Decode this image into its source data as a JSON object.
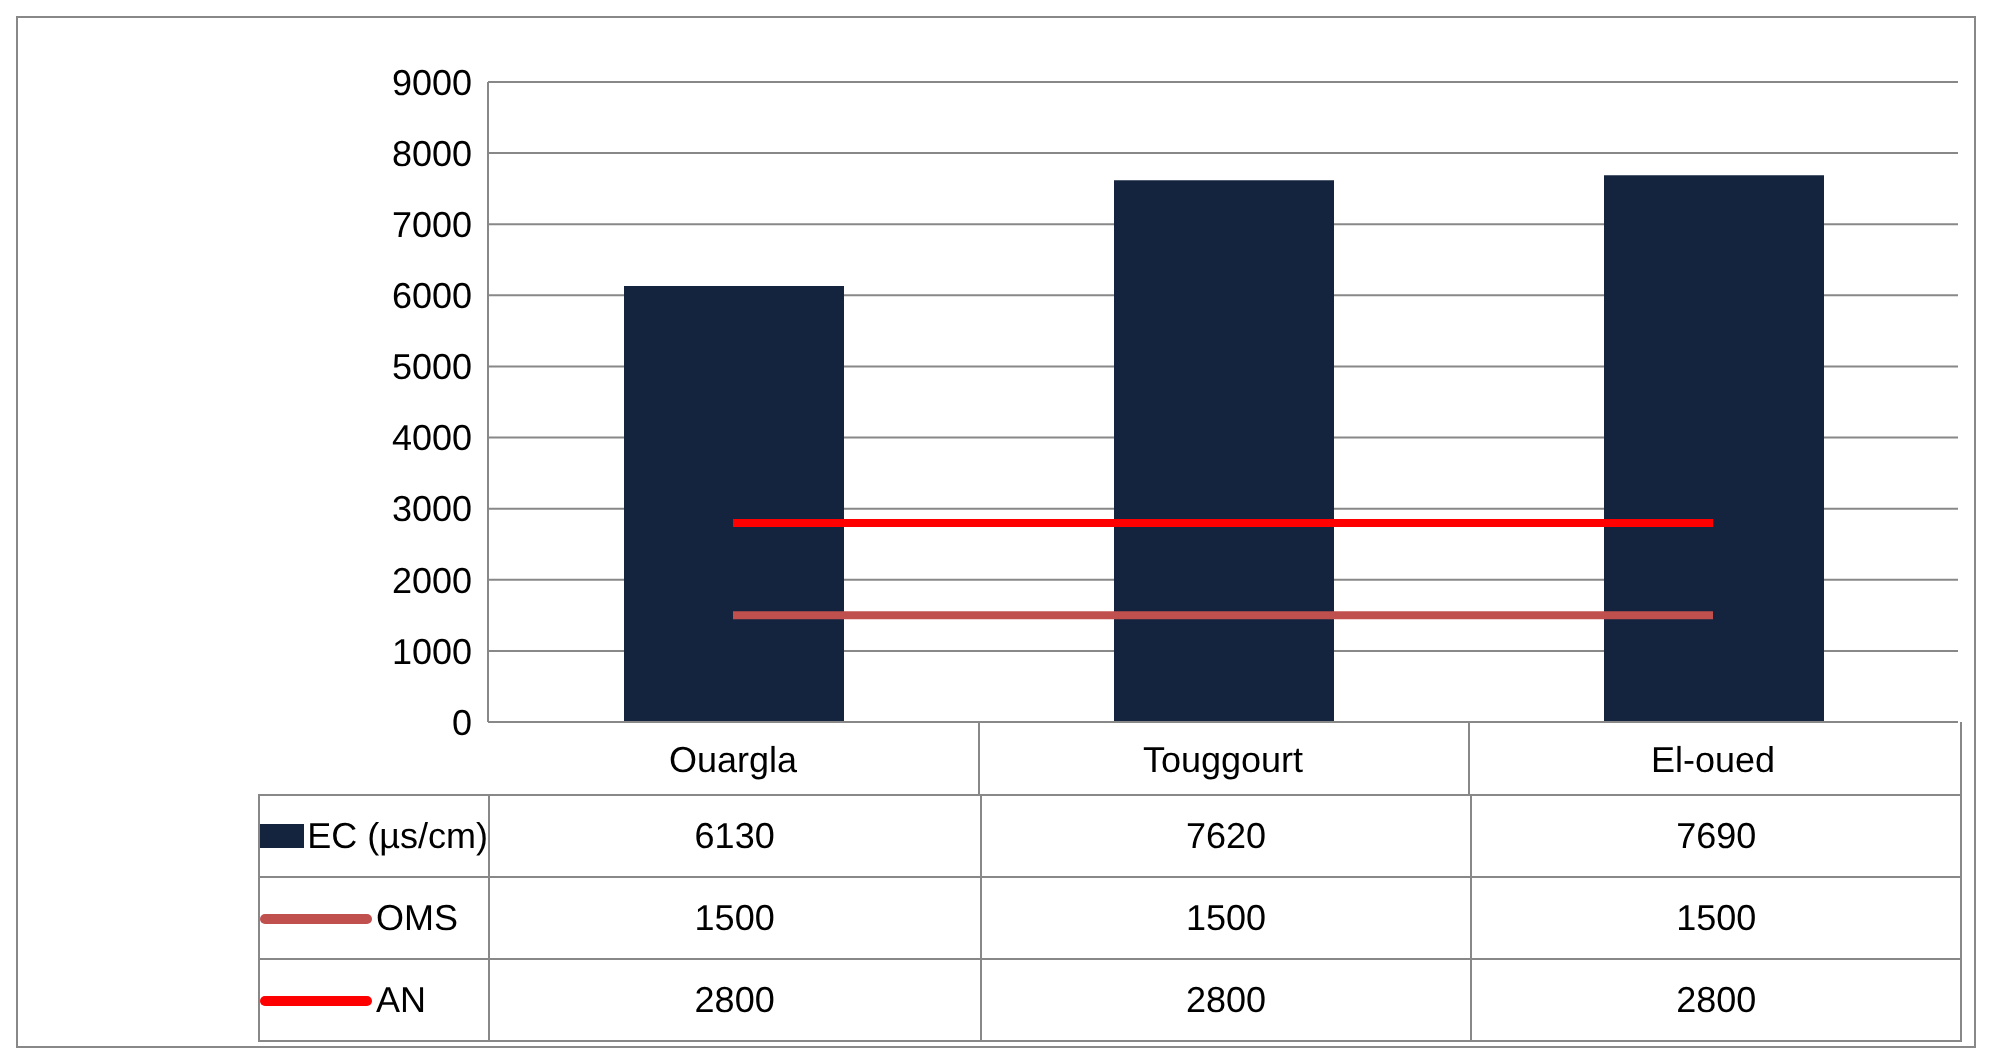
{
  "chart_data": {
    "type": "bar",
    "categories": [
      "Ouargla",
      "Touggourt",
      "El-oued"
    ],
    "series": [
      {
        "name": "EC (µs/cm)",
        "color": "#14243f",
        "values": [
          6130,
          7620,
          7690
        ]
      },
      {
        "name": "OMS",
        "type": "line",
        "color": "#c0504d",
        "values": [
          1500,
          1500,
          1500
        ]
      },
      {
        "name": "AN",
        "type": "line",
        "color": "#ff0000",
        "values": [
          2800,
          2800,
          2800
        ]
      }
    ],
    "ylim": [
      0,
      9000
    ],
    "yticks": [
      0,
      1000,
      2000,
      3000,
      4000,
      5000,
      6000,
      7000,
      8000,
      9000
    ],
    "grid": "y",
    "legend": "bottom",
    "data_labels": true,
    "line_style": "solid",
    "marker": "none"
  }
}
